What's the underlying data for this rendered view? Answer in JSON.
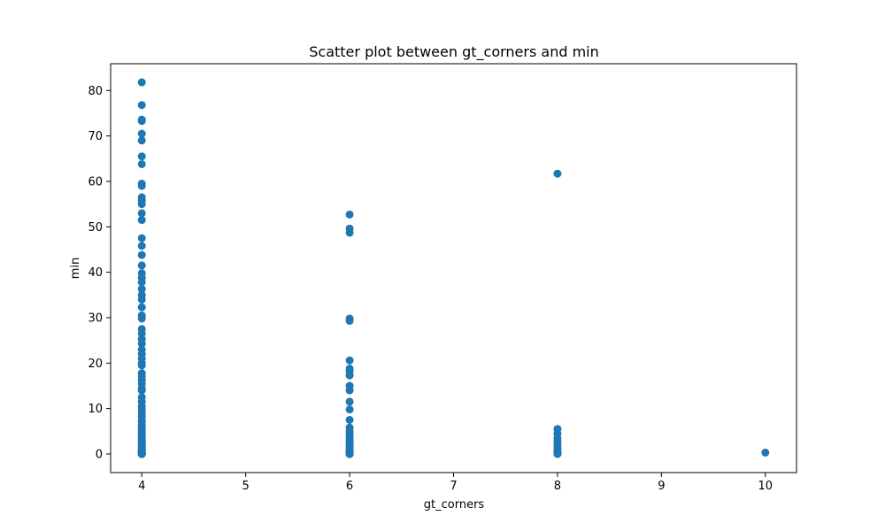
{
  "chart_data": {
    "type": "scatter",
    "title": "Scatter plot between gt_corners and min",
    "xlabel": "gt_corners",
    "ylabel": "min",
    "xlim": [
      3.7,
      10.3
    ],
    "ylim": [
      -4.1,
      85.9
    ],
    "xticks": [
      4,
      5,
      6,
      7,
      8,
      9,
      10
    ],
    "yticks": [
      0,
      10,
      20,
      30,
      40,
      50,
      60,
      70,
      80
    ],
    "grid": false,
    "marker_color": "#1f77b4",
    "series": [
      {
        "x": [
          4,
          4,
          4,
          4,
          4,
          4,
          4,
          4,
          4,
          4,
          4,
          4,
          4,
          4,
          4,
          4,
          4,
          4,
          4,
          4,
          4,
          4,
          4,
          4,
          4,
          4,
          4,
          4,
          4,
          4,
          4,
          4,
          4,
          4,
          4,
          4,
          4,
          4,
          4,
          4,
          4,
          4,
          4,
          4,
          4,
          4,
          4,
          4,
          4,
          4,
          4,
          4,
          4,
          4,
          4,
          4,
          4,
          4,
          4,
          4,
          4,
          4,
          4,
          4,
          4,
          4,
          4,
          4,
          4,
          4,
          4,
          4,
          4,
          4,
          4,
          4,
          4,
          4,
          4,
          4,
          4,
          4,
          4,
          4,
          4,
          4,
          4,
          4,
          4,
          4,
          6,
          6,
          6,
          6,
          6,
          6,
          6,
          6,
          6,
          6,
          6,
          6,
          6,
          6,
          6,
          6,
          6,
          6,
          6,
          6,
          6,
          6,
          6,
          6,
          6,
          6,
          6,
          6,
          6,
          6,
          6,
          6,
          6,
          6,
          6,
          8,
          8,
          8,
          8,
          8,
          8,
          8,
          8,
          8,
          8,
          8,
          8,
          10
        ],
        "y": [
          81.8,
          76.8,
          73.6,
          73.3,
          70.5,
          69.0,
          65.5,
          63.8,
          59.5,
          59.0,
          56.5,
          55.8,
          55.0,
          53.0,
          51.5,
          47.5,
          45.8,
          43.8,
          41.5,
          39.8,
          38.8,
          37.8,
          36.3,
          35.0,
          34.0,
          32.3,
          30.5,
          29.8,
          27.5,
          26.5,
          25.3,
          24.3,
          23.0,
          22.0,
          21.0,
          20.0,
          19.5,
          17.8,
          17.0,
          16.3,
          15.5,
          14.5,
          14.0,
          12.5,
          11.5,
          10.5,
          9.8,
          9.0,
          8.3,
          7.5,
          7.0,
          6.3,
          5.8,
          5.3,
          4.8,
          4.3,
          3.8,
          3.4,
          3.0,
          2.7,
          2.4,
          2.1,
          1.8,
          1.5,
          1.2,
          1.0,
          0.8,
          0.6,
          0.4,
          0.3,
          0.2,
          0.15,
          0.1,
          0.05,
          0.0,
          0.0,
          0.0,
          0.0,
          0.0,
          0.0,
          0.0,
          0.0,
          0.0,
          0.0,
          0.0,
          0.0,
          0.0,
          0.0,
          0.0,
          0.0,
          52.7,
          49.6,
          48.7,
          29.8,
          29.3,
          20.6,
          18.8,
          18.2,
          17.3,
          15.0,
          14.0,
          11.5,
          9.8,
          7.5,
          5.8,
          5.0,
          4.5,
          3.8,
          3.3,
          2.8,
          2.3,
          1.8,
          1.4,
          1.0,
          0.7,
          0.5,
          0.3,
          0.2,
          0.1,
          0.0,
          0.0,
          0.0,
          0.0,
          0.0,
          0.0,
          61.7,
          5.5,
          4.5,
          3.5,
          2.8,
          2.0,
          1.3,
          0.8,
          0.4,
          0.2,
          0.05,
          0.0,
          0.3
        ]
      }
    ]
  }
}
